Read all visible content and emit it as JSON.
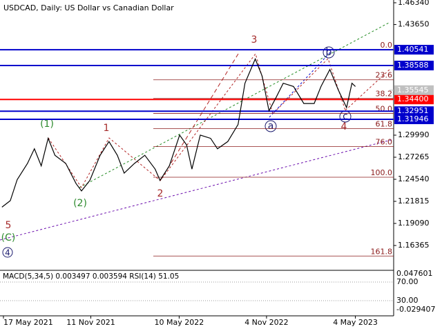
{
  "chart_data": {
    "type": "line",
    "title": "USDCAD, Daily:  US Dollar vs Canadian Dollar",
    "x": [
      -3,
      14,
      28,
      49,
      63,
      77,
      91,
      105,
      127,
      148,
      159,
      176,
      197,
      215,
      232,
      246,
      267,
      288,
      309,
      319,
      338,
      359,
      373,
      384,
      401,
      422,
      436,
      457,
      478,
      492,
      513,
      527,
      541,
      556,
      570,
      591,
      612,
      633,
      647,
      665,
      682,
      699,
      710,
      717
    ],
    "values": [
      1.211,
      1.219,
      1.245,
      1.265,
      1.283,
      1.262,
      1.296,
      1.275,
      1.265,
      1.24,
      1.231,
      1.244,
      1.275,
      1.292,
      1.275,
      1.253,
      1.265,
      1.275,
      1.258,
      1.244,
      1.262,
      1.3,
      1.288,
      1.258,
      1.3,
      1.296,
      1.283,
      1.292,
      1.313,
      1.364,
      1.394,
      1.373,
      1.33,
      1.347,
      1.364,
      1.36,
      1.339,
      1.339,
      1.36,
      1.381,
      1.356,
      1.334,
      1.364,
      1.36
    ],
    "color": "#000000",
    "xlim": [
      -7,
      795
    ],
    "xticks": [
      {
        "value": 0,
        "label": "17 May 2021"
      },
      {
        "value": 178,
        "label": "11 Nov 2021"
      },
      {
        "value": 358,
        "label": "10 May 2022"
      },
      {
        "value": 536,
        "label": "4 Nov 2022"
      },
      {
        "value": 717,
        "label": "4 May 2023"
      }
    ],
    "ylim": [
      1.1347,
      1.4668
    ],
    "yticks": [
      {
        "value": 1.4634,
        "label": "1.46340"
      },
      {
        "value": 1.4365,
        "label": "1.43650"
      },
      {
        "value": 1.2999,
        "label": "1.29990"
      },
      1.27265,
      {
        "value": 1.2454,
        "label": "1.24540"
      },
      1.21815,
      {
        "value": 1.1909,
        "label": "1.19090"
      },
      1.16365
    ],
    "levels": [
      1.40541,
      1.38588,
      {
        "value": 1.344,
        "label": "1.34400"
      },
      1.32951,
      1.31946,
      1.35545
    ],
    "level_colors": [
      "#0000cc",
      "#0000cc",
      "#ff0000",
      "#0000cc",
      "#0000cc",
      "#c0c0c0"
    ],
    "fib": {
      "high": 1.40541,
      "low": 1.24795,
      "color": "#8b1a1a",
      "levels": [
        {
          "value": 0,
          "label": "0.0"
        },
        23.6,
        38.2,
        {
          "value": 50,
          "label": "50.0"
        },
        61.8,
        {
          "value": 76,
          "label": "76.0"
        },
        {
          "value": 100,
          "label": "100.0"
        },
        161.8
      ]
    },
    "wave_labels": [
      "(1)",
      "(2)",
      "1",
      "2",
      "3",
      "4",
      "5",
      "(C)",
      "4",
      "a",
      "b",
      "c"
    ],
    "indicator": {
      "label": "MACD(5,34,5) 0.003497 0.003594 RSI(14) 51.05",
      "ticks": [
        0.047601,
        {
          "value": 70,
          "label": "70.00"
        },
        {
          "value": 30,
          "label": "30.00"
        },
        -0.029407
      ]
    }
  }
}
